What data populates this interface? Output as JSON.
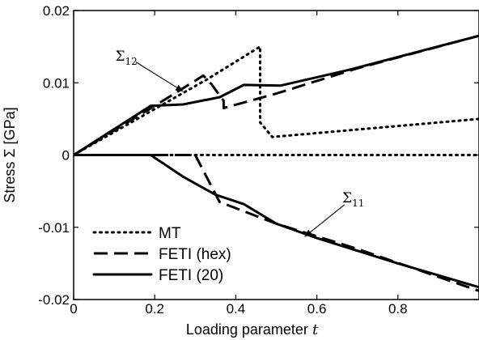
{
  "chart_data": {
    "type": "line",
    "xlabel": "Loading parameter t",
    "ylabel": "Stress Σ [GPa]",
    "xlim": [
      0,
      1
    ],
    "ylim": [
      -0.02,
      0.02
    ],
    "x_ticks": [
      0,
      0.2,
      0.4,
      0.6,
      0.8
    ],
    "x_tick_labels": [
      "0",
      "0.2",
      "0.4",
      "0.6",
      "0.8"
    ],
    "y_ticks": [
      -0.02,
      -0.01,
      0,
      0.01,
      0.02
    ],
    "y_tick_labels": [
      "-0.02",
      "-0.01",
      "0",
      "0.01",
      "0.02"
    ],
    "grid": false,
    "legend_position": "bottom-left",
    "series": [
      {
        "name": "MT",
        "style": "dotted",
        "color": "#000000",
        "curves": [
          {
            "component": "Σ12",
            "x": [
              0,
              0.33,
              0.46,
              0.46,
              0.49,
              1.0
            ],
            "y": [
              0,
              0.0105,
              0.015,
              0.0045,
              0.0025,
              0.005
            ]
          },
          {
            "component": "Σ11",
            "x": [
              0,
              1.0
            ],
            "y": [
              0,
              0
            ]
          }
        ]
      },
      {
        "name": "FETI (hex)",
        "style": "dashed",
        "color": "#000000",
        "curves": [
          {
            "component": "Σ12",
            "x": [
              0,
              0.2,
              0.3,
              0.32,
              0.34,
              0.37,
              0.37,
              0.5,
              0.7,
              1.0
            ],
            "y": [
              0,
              0.0068,
              0.0103,
              0.011,
              0.0098,
              0.0075,
              0.0065,
              0.0085,
              0.012,
              0.0165
            ]
          },
          {
            "component": "Σ11",
            "x": [
              0,
              0.3,
              0.36,
              0.5,
              0.7,
              1.0
            ],
            "y": [
              0,
              0,
              -0.0065,
              -0.0095,
              -0.013,
              -0.0188
            ]
          }
        ]
      },
      {
        "name": "FETI (20)",
        "style": "solid",
        "color": "#000000",
        "curves": [
          {
            "component": "Σ12",
            "x": [
              0,
              0.19,
              0.27,
              0.36,
              0.42,
              0.51,
              0.68,
              1.0
            ],
            "y": [
              0,
              0.0068,
              0.007,
              0.008,
              0.0097,
              0.0096,
              0.0118,
              0.0165
            ]
          },
          {
            "component": "Σ11",
            "x": [
              0,
              0.19,
              0.27,
              0.35,
              0.42,
              0.5,
              0.6,
              0.8,
              1.0
            ],
            "y": [
              0,
              0,
              -0.003,
              -0.0055,
              -0.0068,
              -0.0095,
              -0.0115,
              -0.015,
              -0.0183
            ]
          }
        ]
      }
    ],
    "annotations": [
      {
        "text": "Σ12",
        "arrow_to": [
          0.27,
          0.0088
        ],
        "label_at": [
          0.13,
          0.0137
        ]
      },
      {
        "text": "Σ11",
        "arrow_to": [
          0.57,
          -0.0113
        ],
        "label_at": [
          0.69,
          -0.0059
        ]
      }
    ]
  }
}
